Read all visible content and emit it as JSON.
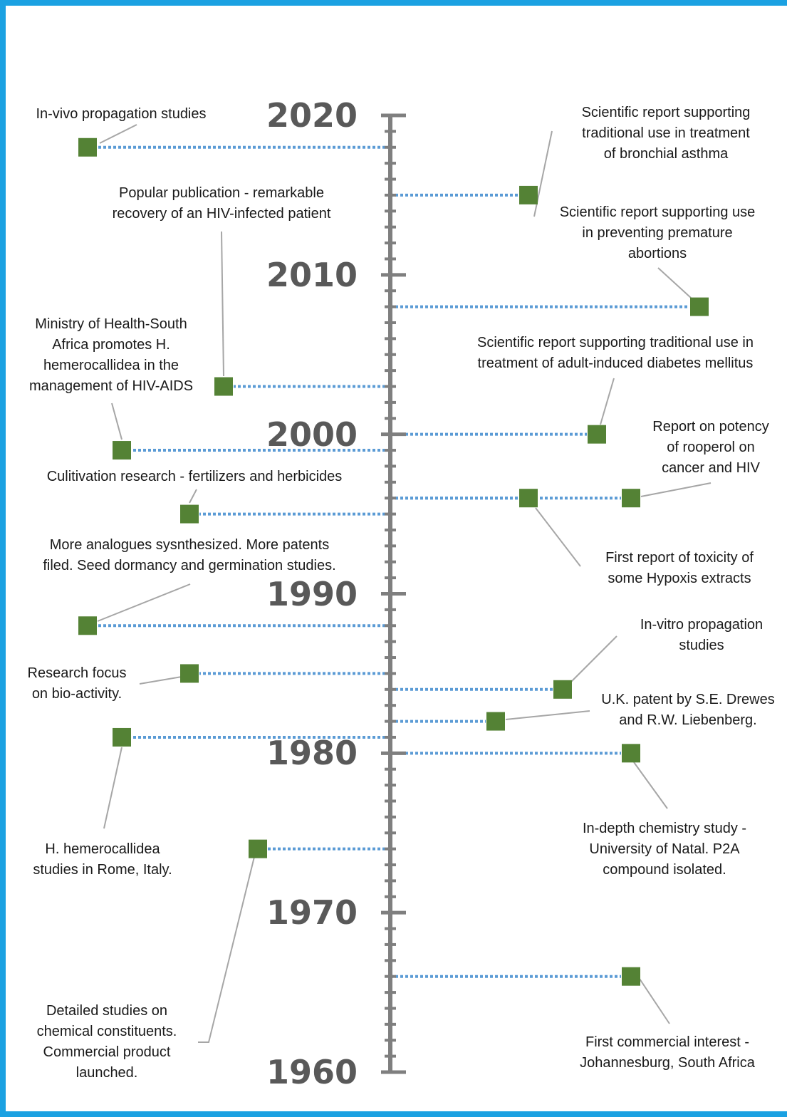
{
  "colors": {
    "frame": "#1ba1e2",
    "axis": "#7f7f7f",
    "marker": "#548235",
    "connector": "#5b9bd5",
    "leader": "#a6a6a6",
    "year_text": "#595959"
  },
  "axis": {
    "start_year": 1960,
    "end_year": 2020,
    "major_ticks": [
      1960,
      1970,
      1980,
      1990,
      2000,
      2010,
      2020
    ]
  },
  "events": [
    {
      "id": "invivo",
      "side": "left",
      "year": 2018,
      "lines": [
        "In-vivo propagation studies"
      ]
    },
    {
      "id": "asthma",
      "side": "right",
      "year": 2015,
      "lines": [
        "Scientific report supporting",
        "traditional use in treatment",
        "of bronchial asthma"
      ]
    },
    {
      "id": "abortion",
      "side": "right",
      "year": 2008,
      "lines": [
        "Scientific report supporting use",
        "in preventing premature",
        "abortions"
      ]
    },
    {
      "id": "hiv-patient",
      "side": "left",
      "year": 2003,
      "lines": [
        "Popular publication - remarkable",
        "recovery of an HIV-infected patient"
      ]
    },
    {
      "id": "ministry",
      "side": "left",
      "year": 1999,
      "lines": [
        "Ministry of Health-South",
        "Africa promotes H.",
        "hemerocallidea in the",
        "management of HIV-AIDS"
      ]
    },
    {
      "id": "diabetes",
      "side": "right",
      "year": 2000,
      "lines": [
        "Scientific report supporting traditional use in",
        "treatment of adult-induced diabetes mellitus"
      ]
    },
    {
      "id": "rooperol",
      "side": "right",
      "year": 1996,
      "lines": [
        "Report on potency",
        "of rooperol on",
        "cancer and HIV"
      ]
    },
    {
      "id": "toxicity",
      "side": "right",
      "year": 1996,
      "lines": [
        "First report of toxicity of",
        "some Hypoxis extracts"
      ]
    },
    {
      "id": "cultivation",
      "side": "left",
      "year": 1995,
      "lines": [
        "Culitivation research - fertilizers and herbicides"
      ]
    },
    {
      "id": "analogues",
      "side": "left",
      "year": 1988,
      "lines": [
        "More analogues sysnthesized. More patents",
        "filed. Seed dormancy and germination studies."
      ]
    },
    {
      "id": "bioactivity",
      "side": "left",
      "year": 1985,
      "lines": [
        "Research focus",
        "on bio-activity."
      ]
    },
    {
      "id": "invitro",
      "side": "right",
      "year": 1984,
      "lines": [
        "In-vitro propagation",
        "studies"
      ]
    },
    {
      "id": "uk-patent",
      "side": "right",
      "year": 1982,
      "lines": [
        "U.K. patent by S.E. Drewes",
        "and R.W. Liebenberg."
      ]
    },
    {
      "id": "rome",
      "side": "left",
      "year": 1981,
      "lines": [
        "H. hemerocallidea",
        "studies in Rome, Italy."
      ]
    },
    {
      "id": "natal",
      "side": "right",
      "year": 1980,
      "lines": [
        "In-depth chemistry study -",
        "University of Natal. P2A",
        "compound isolated."
      ]
    },
    {
      "id": "detailed",
      "side": "left",
      "year": 1974,
      "lines": [
        "Detailed studies on",
        "chemical constituents.",
        "Commercial product",
        "launched."
      ]
    },
    {
      "id": "commercial",
      "side": "right",
      "year": 1966,
      "lines": [
        "First commercial interest -",
        "Johannesburg, South Africa"
      ]
    }
  ]
}
